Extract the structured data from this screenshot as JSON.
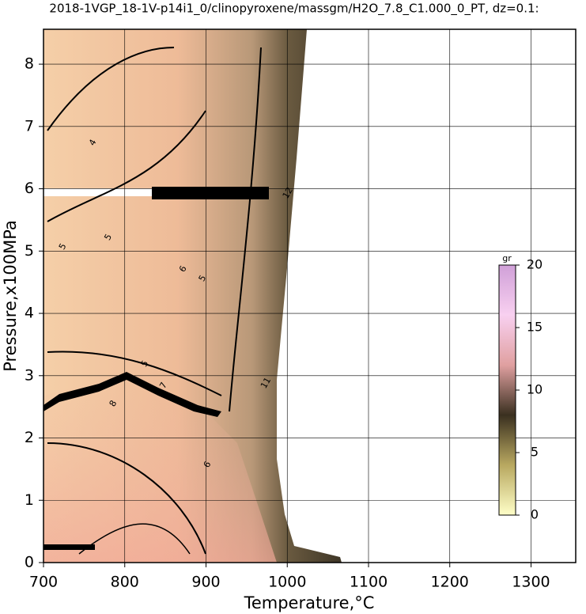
{
  "chart_data": {
    "type": "contour",
    "title": "2018-1VGP_18-1V-p14i1_0/clinopyroxene/massgm/H2O_7.8_C1.000_0_PT, dz=0.1:",
    "x_label": "Temperature,°C",
    "y_label": "Pressure,x100MPa",
    "xlim": [
      700,
      1355
    ],
    "ylim": [
      0,
      8.56
    ],
    "xticks": [
      700,
      800,
      900,
      1000,
      1100,
      1200,
      1300
    ],
    "yticks": [
      0,
      1,
      2,
      3,
      4,
      5,
      6,
      7,
      8
    ],
    "grid": true,
    "contour_labels": [
      {
        "T": 761,
        "P": 6.74,
        "level": 4
      },
      {
        "T": 780,
        "P": 5.22,
        "level": 5
      },
      {
        "T": 724,
        "P": 5.07,
        "level": 5
      },
      {
        "T": 872,
        "P": 4.71,
        "level": 6
      },
      {
        "T": 896,
        "P": 4.56,
        "level": 5
      },
      {
        "T": 786,
        "P": 2.55,
        "level": 8
      },
      {
        "T": 848,
        "P": 2.84,
        "level": 7
      },
      {
        "T": 974,
        "P": 2.88,
        "level": 11
      },
      {
        "T": 825,
        "P": 3.19,
        "level": 5
      },
      {
        "T": 902,
        "P": 1.57,
        "level": 6
      },
      {
        "T": 1001,
        "P": 5.93,
        "level": 12
      }
    ],
    "colorbar": {
      "label": "gr",
      "lim": [
        0,
        20
      ],
      "ticks": [
        0,
        5,
        10,
        15,
        20
      ],
      "colors": [
        "#ffffc8",
        "#b8a860",
        "#3a3020",
        "#e0a0a0",
        "#f8d0f0",
        "#d0a0d8"
      ]
    }
  }
}
